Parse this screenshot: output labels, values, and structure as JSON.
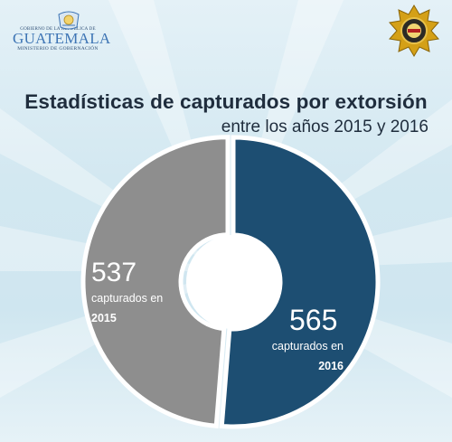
{
  "header": {
    "logo_small_top": "GOBIERNO DE LA REPÚBLICA DE",
    "logo_brand": "GUATEMALA",
    "logo_subtitle": "MINISTERIO DE GOBERNACIÓN",
    "badge_icon": "police-badge-icon"
  },
  "chart_data": {
    "type": "pie",
    "title": "Estadísticas de capturados por extorsión",
    "subtitle": "entre los años 2015 y 2016",
    "categories": [
      "2015",
      "2016"
    ],
    "values": [
      537,
      565
    ],
    "labels": [
      {
        "value": "537",
        "text": "capturados en",
        "year": "2015"
      },
      {
        "value": "565",
        "text": "capturados en",
        "year": "2016"
      }
    ],
    "colors": {
      "2015": "#8e8e8e",
      "2016": "#1d4e72"
    },
    "donut": true
  }
}
